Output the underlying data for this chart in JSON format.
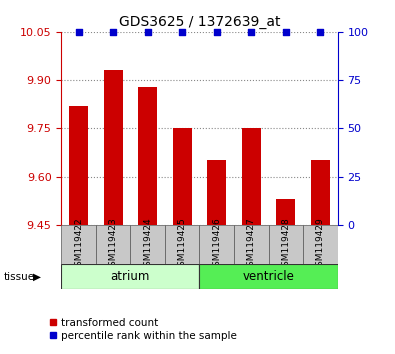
{
  "title": "GDS3625 / 1372639_at",
  "samples": [
    "GSM119422",
    "GSM119423",
    "GSM119424",
    "GSM119425",
    "GSM119426",
    "GSM119427",
    "GSM119428",
    "GSM119429"
  ],
  "transformed_counts": [
    9.82,
    9.93,
    9.88,
    9.75,
    9.65,
    9.75,
    9.53,
    9.65
  ],
  "percentile_ranks": [
    100,
    100,
    100,
    100,
    100,
    100,
    100,
    100
  ],
  "ylim_left": [
    9.45,
    10.05
  ],
  "yticks_left": [
    9.45,
    9.6,
    9.75,
    9.9,
    10.05
  ],
  "ylim_right": [
    0,
    100
  ],
  "yticks_right": [
    0,
    25,
    50,
    75,
    100
  ],
  "bar_color": "#cc0000",
  "dot_color": "#0000cc",
  "bar_width": 0.55,
  "grid_color": "#888888",
  "tick_color_left": "#cc0000",
  "tick_color_right": "#0000cc",
  "legend_labels": [
    "transformed count",
    "percentile rank within the sample"
  ],
  "legend_colors": [
    "#cc0000",
    "#0000cc"
  ],
  "tissue_label": "tissue",
  "sample_bg_color": "#c8c8c8",
  "atrium_color": "#ccffcc",
  "ventricle_color": "#55ee55",
  "atrium_n": 4,
  "ventricle_n": 4
}
